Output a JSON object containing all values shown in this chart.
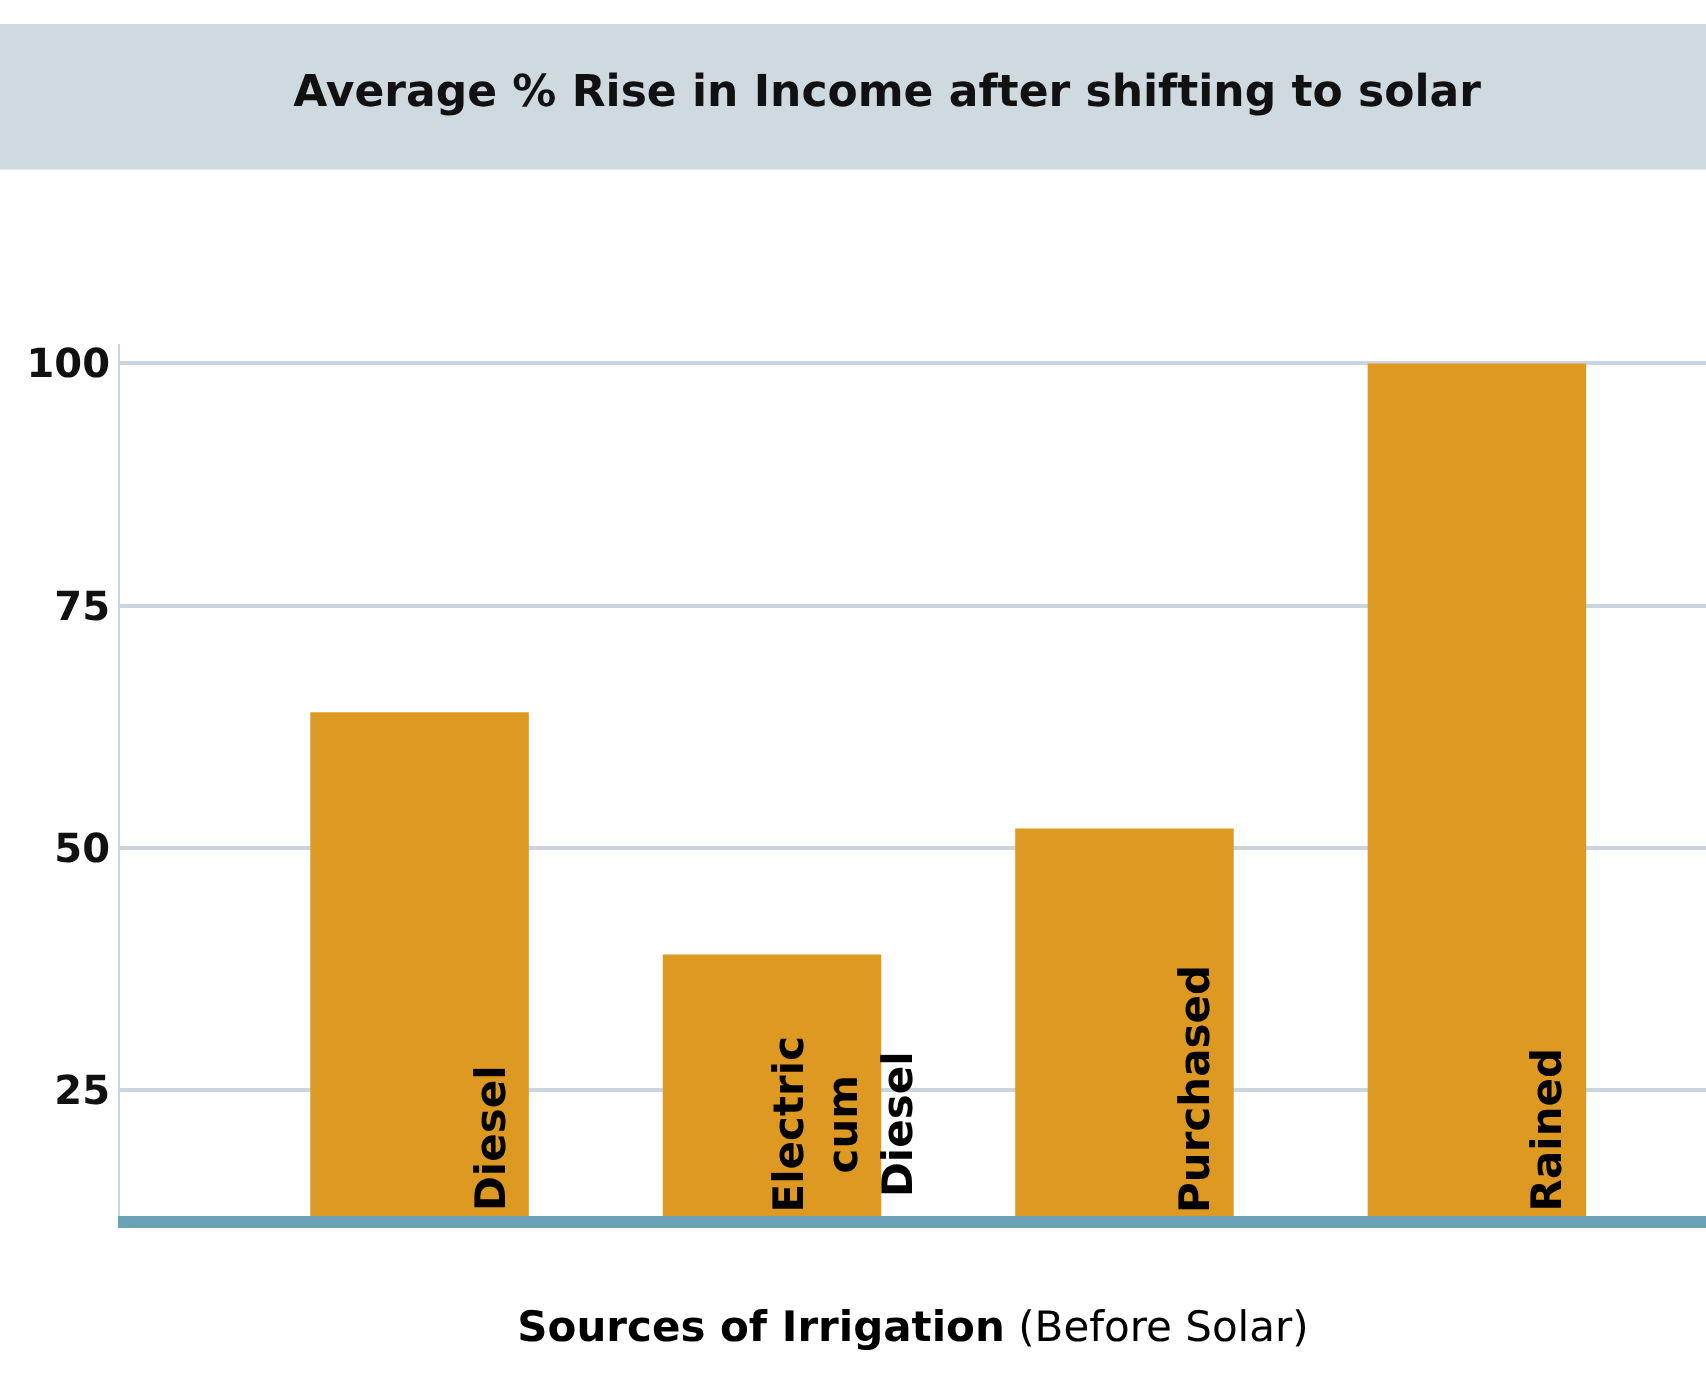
{
  "chart_data": {
    "type": "bar",
    "title": "Average % Rise in Income after shifting to solar",
    "xlabel": "Sources of Irrigation (Before Solar)",
    "categories": [
      "Diesel",
      "Electric cum Diesel",
      "Purchased",
      "Rained"
    ],
    "values": [
      64,
      39,
      52,
      100
    ],
    "color": "#de9922",
    "ylim": [
      12,
      102
    ],
    "yticks": [
      25,
      50,
      75,
      100
    ],
    "grid": "y",
    "legend": false
  }
}
